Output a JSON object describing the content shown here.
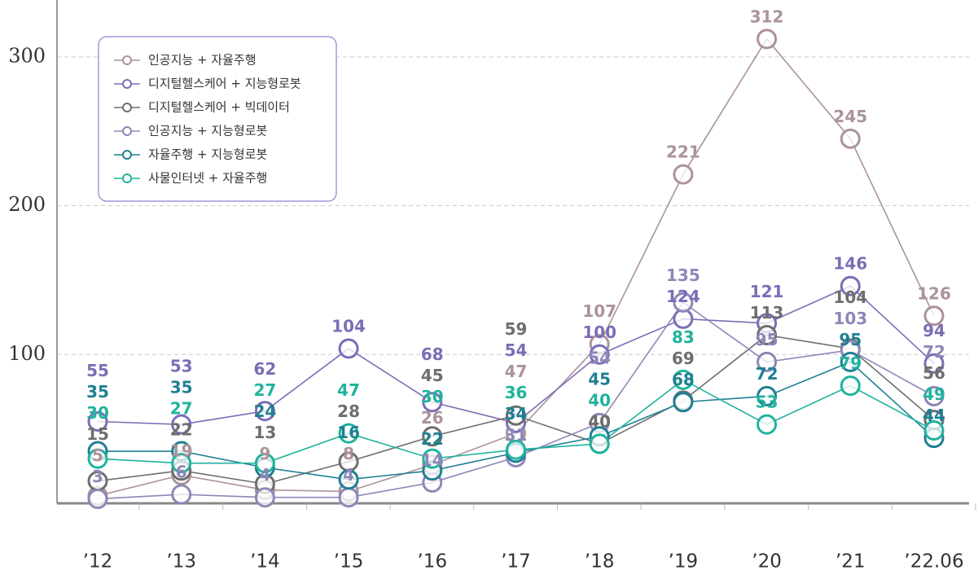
{
  "chart_data": {
    "type": "line",
    "categories": [
      "’12",
      "’13",
      "’14",
      "’15",
      "’16",
      "’17",
      "’18",
      "’19",
      "’20",
      "’21",
      "’22.06"
    ],
    "series": [
      {
        "name": "인공지능 + 자율주행",
        "color": "#ab9399",
        "values": [
          5,
          19,
          9,
          8,
          26,
          47,
          107,
          221,
          312,
          245,
          126
        ]
      },
      {
        "name": "디지털헬스케어 + 지능형로봇",
        "color": "#7b6db5",
        "values": [
          55,
          53,
          62,
          104,
          68,
          54,
          100,
          124,
          121,
          146,
          94
        ]
      },
      {
        "name": "디지털헬스케어 + 빅데이터",
        "color": "#6e6e6e",
        "values": [
          15,
          22,
          13,
          28,
          45,
          59,
          40,
          69,
          113,
          104,
          56
        ]
      },
      {
        "name": "인공지능 + 지능형로봇",
        "color": "#8d87b8",
        "values": [
          3,
          6,
          4,
          4,
          14,
          31,
          54,
          135,
          95,
          103,
          72
        ]
      },
      {
        "name": "자율주행 + 지능형로봇",
        "color": "#1f7f92",
        "values": [
          35,
          35,
          24,
          16,
          22,
          34,
          45,
          68,
          72,
          95,
          44
        ]
      },
      {
        "name": "사물인터넷 + 자율주행",
        "color": "#1fb39d",
        "values": [
          30,
          27,
          27,
          47,
          30,
          36,
          40,
          83,
          53,
          79,
          49
        ]
      }
    ],
    "ylim": [
      0,
      330
    ],
    "yticks": [
      100,
      200,
      300
    ],
    "grid": true,
    "legend": "upper left"
  }
}
